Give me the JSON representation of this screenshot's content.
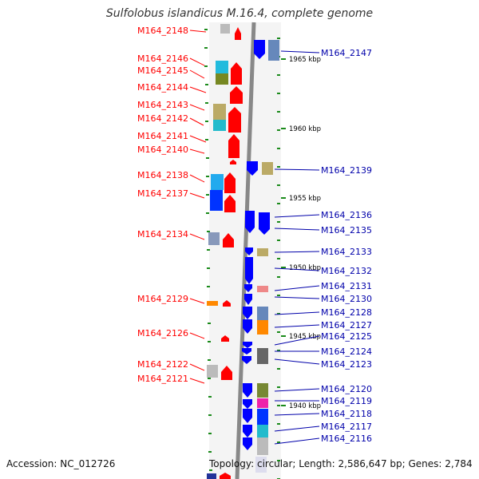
{
  "title": "Sulfolobus islandicus M.16.4, complete genome",
  "footer": {
    "accession": "Accession: NC_012726",
    "topology": "Topology: circular; Length: 2,586,647 bp; Genes: 2,784"
  },
  "colors": {
    "left_label": "#ff0000",
    "right_label": "#0000aa",
    "forward_gene": "#ff0000",
    "reverse_gene": "#0000ff",
    "backbone": "#888888",
    "tick": "#1a8a1a"
  },
  "scale_labels": [
    "1965 kbp",
    "1960 kbp",
    "1955 kbp",
    "1950 kbp",
    "1945 kbp",
    "1940 kbp"
  ],
  "left_genes": [
    "M164_2148",
    "M164_2146",
    "M164_2145",
    "M164_2144",
    "M164_2143",
    "M164_2142",
    "M164_2141",
    "M164_2140",
    "M164_2138",
    "M164_2137",
    "M164_2134",
    "M164_2129",
    "M164_2126",
    "M164_2122",
    "M164_2121"
  ],
  "right_genes": [
    "M164_2147",
    "M164_2139",
    "M164_2136",
    "M164_2135",
    "M164_2133",
    "M164_2132",
    "M164_2131",
    "M164_2130",
    "M164_2128",
    "M164_2127",
    "M164_2125",
    "M164_2124",
    "M164_2123",
    "M164_2120",
    "M164_2119",
    "M164_2118",
    "M164_2117",
    "M164_2116"
  ]
}
